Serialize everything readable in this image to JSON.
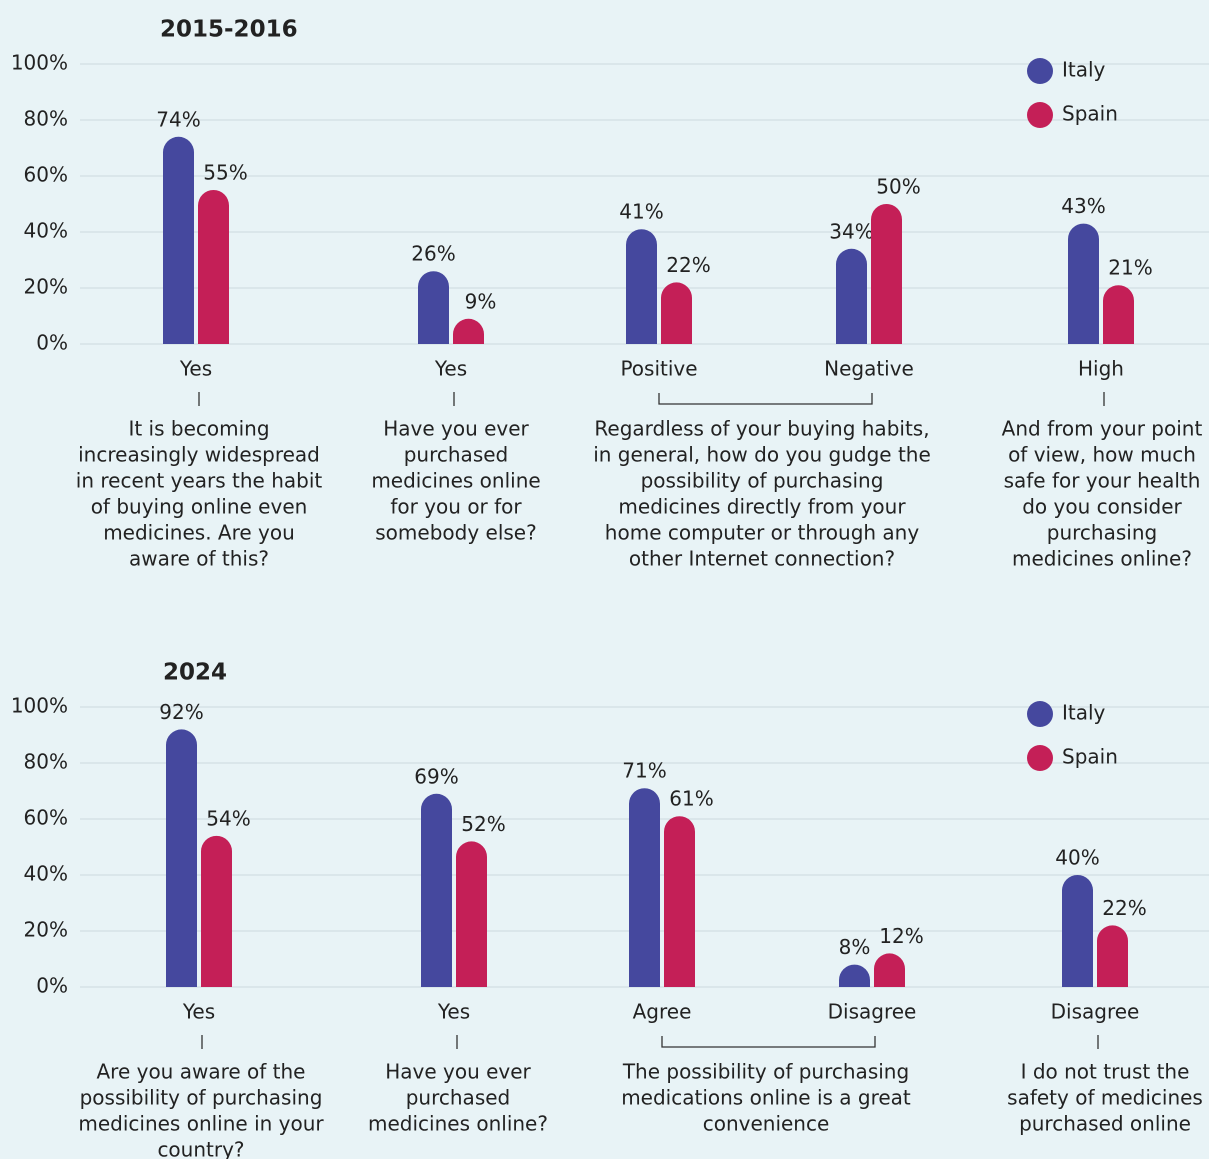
{
  "chart_data": [
    {
      "type": "bar",
      "title": "2015-2016",
      "ylim": [
        0,
        100
      ],
      "yticks": [
        {
          "value": 0,
          "label": "0%"
        },
        {
          "value": 20,
          "label": "20%"
        },
        {
          "value": 40,
          "label": "40%"
        },
        {
          "value": 60,
          "label": "60%"
        },
        {
          "value": 80,
          "label": "80%"
        },
        {
          "value": 100,
          "label": "100%"
        }
      ],
      "grid": true,
      "legend": "top-right",
      "groups": [
        {
          "categories": [
            "Yes"
          ],
          "question": [
            "It is becoming",
            "increasingly widespread",
            "in recent years the habit",
            "of buying online even",
            "medicines. Are you",
            "aware of this?"
          ]
        },
        {
          "categories": [
            "Yes"
          ],
          "question": [
            "Have you ever",
            "purchased",
            "medicines online",
            "for you or for",
            "somebody else?"
          ]
        },
        {
          "categories": [
            "Positive",
            "Negative"
          ],
          "question": [
            "Regardless of your buying habits,",
            "in general, how do you gudge the",
            "possibility of purchasing",
            "medicines directly from your",
            "home computer or through any",
            "other Internet connection?"
          ]
        },
        {
          "categories": [
            "High"
          ],
          "question": [
            "And from your point",
            "of view, how much",
            "safe for your health",
            "do you consider",
            "purchasing",
            "medicines online?"
          ]
        }
      ],
      "series": [
        {
          "name": "Italy",
          "color": "#45489e",
          "values": [
            74,
            26,
            41,
            34,
            43
          ],
          "value_labels": [
            "74%",
            "26%",
            "41%",
            "34%",
            "43%"
          ]
        },
        {
          "name": "Spain",
          "color": "#c41f57",
          "values": [
            55,
            9,
            22,
            50,
            21
          ],
          "value_labels": [
            "55%",
            "9%",
            "22%",
            "50%",
            "21%"
          ]
        }
      ]
    },
    {
      "type": "bar",
      "title": "2024",
      "ylim": [
        0,
        100
      ],
      "yticks": [
        {
          "value": 0,
          "label": "0%"
        },
        {
          "value": 20,
          "label": "20%"
        },
        {
          "value": 40,
          "label": "40%"
        },
        {
          "value": 60,
          "label": "60%"
        },
        {
          "value": 80,
          "label": "80%"
        },
        {
          "value": 100,
          "label": "100%"
        }
      ],
      "grid": true,
      "legend": "top-right",
      "groups": [
        {
          "categories": [
            "Yes"
          ],
          "question": [
            "Are you aware of the",
            "possibility of purchasing",
            "medicines online in your",
            "country?"
          ]
        },
        {
          "categories": [
            "Yes"
          ],
          "question": [
            "Have you ever",
            "purchased",
            "medicines online?"
          ]
        },
        {
          "categories": [
            "Agree",
            "Disagree"
          ],
          "question": [
            "The possibility of purchasing",
            "medications online is a great",
            "convenience"
          ]
        },
        {
          "categories": [
            "Disagree"
          ],
          "question": [
            "I do not trust the",
            "safety of medicines",
            "purchased online"
          ]
        }
      ],
      "series": [
        {
          "name": "Italy",
          "color": "#45489e",
          "values": [
            92,
            69,
            71,
            8,
            40
          ],
          "value_labels": [
            "92%",
            "69%",
            "71%",
            "8%",
            "40%"
          ]
        },
        {
          "name": "Spain",
          "color": "#c41f57",
          "values": [
            54,
            52,
            61,
            12,
            22
          ],
          "value_labels": [
            "54%",
            "52%",
            "61%",
            "12%",
            "22%"
          ]
        }
      ]
    }
  ]
}
